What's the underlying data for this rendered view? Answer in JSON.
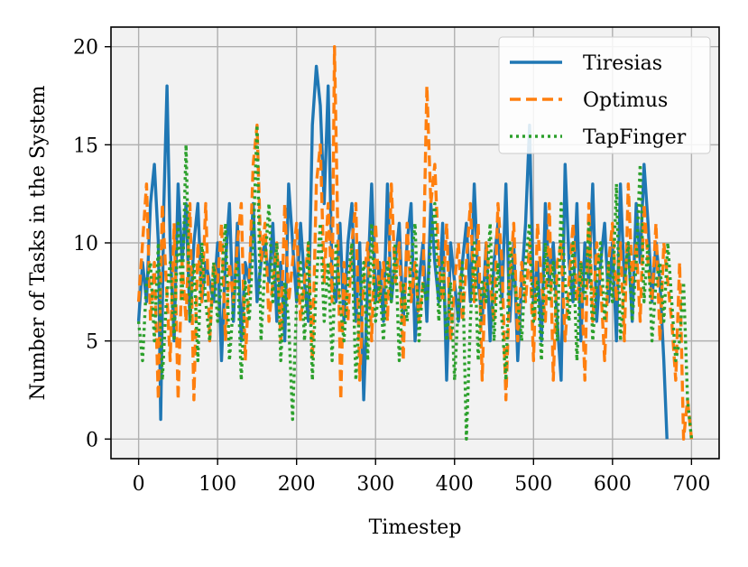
{
  "chart_data": {
    "type": "line",
    "title": "",
    "xlabel": "Timestep",
    "ylabel": "Number of Tasks in the System",
    "xlim": [
      -35,
      735
    ],
    "ylim": [
      -1,
      21
    ],
    "xticks": [
      0,
      100,
      200,
      300,
      400,
      500,
      600,
      700
    ],
    "yticks": [
      0,
      5,
      10,
      15,
      20
    ],
    "xtick_labels": [
      "0",
      "100",
      "200",
      "300",
      "400",
      "500",
      "600",
      "700"
    ],
    "ytick_labels": [
      "0",
      "5",
      "10",
      "15",
      "20"
    ],
    "grid": true,
    "legend_position": "top-right",
    "series": [
      {
        "name": "Tiresias",
        "color": "#1f77b4",
        "style": "solid",
        "x": [
          0,
          5,
          10,
          15,
          20,
          25,
          28,
          32,
          36,
          40,
          45,
          50,
          55,
          60,
          65,
          70,
          75,
          80,
          85,
          90,
          95,
          100,
          105,
          110,
          115,
          120,
          125,
          130,
          135,
          140,
          145,
          150,
          155,
          160,
          165,
          170,
          175,
          180,
          185,
          190,
          195,
          200,
          205,
          210,
          215,
          220,
          225,
          230,
          235,
          240,
          245,
          250,
          255,
          260,
          265,
          270,
          275,
          280,
          285,
          290,
          295,
          300,
          305,
          310,
          315,
          320,
          325,
          330,
          335,
          340,
          345,
          350,
          355,
          360,
          365,
          370,
          375,
          380,
          385,
          390,
          395,
          400,
          405,
          410,
          415,
          420,
          425,
          430,
          435,
          440,
          445,
          450,
          455,
          460,
          465,
          470,
          475,
          480,
          485,
          490,
          495,
          500,
          505,
          510,
          515,
          520,
          525,
          530,
          535,
          540,
          545,
          550,
          555,
          560,
          565,
          570,
          575,
          580,
          585,
          590,
          595,
          600,
          605,
          610,
          615,
          620,
          625,
          630,
          635,
          640,
          645,
          650,
          655,
          660,
          665,
          669
        ],
        "y": [
          6,
          9,
          7,
          12,
          14,
          10,
          1,
          12,
          18,
          10,
          5,
          13,
          9,
          12,
          6,
          10,
          12,
          7,
          9,
          8,
          7,
          10,
          4,
          9,
          12,
          6,
          11,
          5,
          9,
          8,
          12,
          7,
          9,
          10,
          8,
          11,
          6,
          9,
          5,
          13,
          10,
          7,
          11,
          8,
          6,
          16,
          19,
          17,
          12,
          18,
          8,
          7,
          11,
          6,
          10,
          12,
          6,
          10,
          2,
          8,
          13,
          7,
          9,
          6,
          13,
          7,
          9,
          11,
          6,
          10,
          12,
          5,
          8,
          10,
          6,
          12,
          9,
          7,
          11,
          3,
          10,
          8,
          6,
          9,
          11,
          7,
          13,
          8,
          6,
          10,
          5,
          9,
          11,
          7,
          13,
          6,
          10,
          4,
          8,
          11,
          16,
          7,
          9,
          5,
          12,
          8,
          10,
          6,
          3,
          14,
          9,
          7,
          12,
          5,
          10,
          8,
          13,
          6,
          9,
          11,
          7,
          10,
          5,
          13,
          8,
          10,
          6,
          12,
          9,
          14,
          11,
          7,
          10,
          8,
          4,
          0
        ]
      },
      {
        "name": "Optimus",
        "color": "#ff7f0e",
        "style": "dashed",
        "x": [
          0,
          5,
          10,
          15,
          20,
          25,
          30,
          35,
          40,
          45,
          50,
          55,
          60,
          65,
          70,
          75,
          80,
          85,
          90,
          95,
          100,
          105,
          110,
          115,
          120,
          125,
          130,
          135,
          140,
          145,
          150,
          155,
          160,
          165,
          170,
          175,
          180,
          185,
          190,
          195,
          200,
          205,
          210,
          215,
          220,
          225,
          230,
          235,
          240,
          245,
          248,
          252,
          256,
          260,
          265,
          270,
          275,
          280,
          285,
          290,
          295,
          300,
          305,
          310,
          315,
          320,
          325,
          330,
          335,
          340,
          345,
          350,
          355,
          360,
          365,
          370,
          375,
          380,
          385,
          390,
          395,
          400,
          405,
          410,
          415,
          420,
          425,
          430,
          435,
          440,
          445,
          450,
          455,
          460,
          465,
          470,
          475,
          480,
          485,
          490,
          495,
          500,
          505,
          510,
          515,
          520,
          525,
          530,
          535,
          540,
          545,
          550,
          555,
          560,
          565,
          570,
          575,
          580,
          585,
          590,
          595,
          600,
          605,
          610,
          615,
          620,
          625,
          630,
          635,
          640,
          645,
          650,
          655,
          660,
          665,
          670,
          675,
          680,
          685,
          690,
          695,
          700
        ],
        "y": [
          7,
          10,
          13,
          6,
          9,
          2,
          12,
          8,
          4,
          11,
          2,
          9,
          6,
          12,
          2,
          10,
          7,
          12,
          5,
          9,
          8,
          11,
          5,
          9,
          7,
          10,
          12,
          4,
          8,
          14,
          16,
          9,
          11,
          6,
          8,
          10,
          5,
          12,
          7,
          9,
          11,
          6,
          8,
          10,
          4,
          13,
          15,
          8,
          12,
          7,
          20,
          11,
          2,
          9,
          6,
          10,
          12,
          3,
          8,
          10,
          5,
          11,
          7,
          9,
          6,
          13,
          8,
          10,
          4,
          11,
          7,
          9,
          6,
          8,
          18,
          12,
          14,
          9,
          7,
          11,
          5,
          8,
          10,
          6,
          9,
          12,
          7,
          11,
          3,
          10,
          8,
          6,
          12,
          9,
          2,
          8,
          11,
          5,
          9,
          7,
          10,
          4,
          11,
          8,
          6,
          12,
          3,
          9,
          10,
          5,
          8,
          11,
          7,
          9,
          3,
          12,
          6,
          10,
          8,
          4,
          9,
          11,
          7,
          10,
          5,
          13,
          8,
          10,
          6,
          12,
          9,
          7,
          11,
          5,
          10,
          8,
          6,
          3,
          9,
          0,
          2,
          0
        ]
      },
      {
        "name": "TapFinger",
        "color": "#2ca02c",
        "style": "dotted",
        "x": [
          0,
          5,
          10,
          15,
          20,
          25,
          30,
          35,
          40,
          45,
          50,
          55,
          60,
          65,
          70,
          75,
          80,
          85,
          90,
          95,
          100,
          105,
          110,
          115,
          120,
          125,
          130,
          135,
          140,
          145,
          150,
          155,
          160,
          165,
          170,
          175,
          180,
          185,
          190,
          195,
          200,
          205,
          210,
          215,
          220,
          225,
          230,
          235,
          240,
          245,
          250,
          255,
          260,
          265,
          270,
          275,
          280,
          285,
          290,
          295,
          300,
          305,
          310,
          315,
          320,
          325,
          330,
          335,
          340,
          345,
          350,
          355,
          360,
          365,
          370,
          375,
          380,
          385,
          390,
          395,
          400,
          405,
          410,
          415,
          420,
          425,
          430,
          435,
          440,
          445,
          450,
          455,
          460,
          465,
          470,
          475,
          480,
          485,
          490,
          495,
          500,
          505,
          510,
          515,
          520,
          525,
          530,
          535,
          540,
          545,
          550,
          555,
          560,
          565,
          570,
          575,
          580,
          585,
          590,
          595,
          600,
          605,
          610,
          615,
          620,
          625,
          630,
          635,
          640,
          645,
          650,
          655,
          660,
          665,
          670,
          675,
          680,
          685,
          690,
          695,
          700
        ],
        "y": [
          6,
          4,
          8,
          9,
          5,
          10,
          3,
          7,
          9,
          5,
          11,
          7,
          15,
          6,
          9,
          4,
          10,
          7,
          5,
          9,
          6,
          8,
          11,
          4,
          7,
          9,
          3,
          8,
          6,
          10,
          16,
          5,
          9,
          12,
          7,
          10,
          4,
          8,
          6,
          1,
          7,
          9,
          5,
          10,
          3,
          8,
          11,
          6,
          9,
          4,
          10,
          7,
          5,
          8,
          10,
          3,
          7,
          9,
          4,
          11,
          6,
          8,
          5,
          9,
          7,
          10,
          4,
          8,
          6,
          9,
          11,
          5,
          8,
          7,
          10,
          12,
          6,
          9,
          5,
          8,
          3,
          7,
          9,
          0,
          6,
          10,
          4,
          8,
          7,
          11,
          5,
          9,
          6,
          3,
          10,
          8,
          7,
          5,
          9,
          11,
          6,
          8,
          4,
          10,
          7,
          9,
          5,
          12,
          8,
          6,
          10,
          4,
          9,
          7,
          11,
          5,
          8,
          10,
          6,
          9,
          7,
          13,
          5,
          8,
          10,
          6,
          9,
          14,
          7,
          10,
          5,
          8,
          9,
          6,
          10,
          7,
          4,
          5,
          8,
          2,
          0
        ]
      }
    ]
  }
}
